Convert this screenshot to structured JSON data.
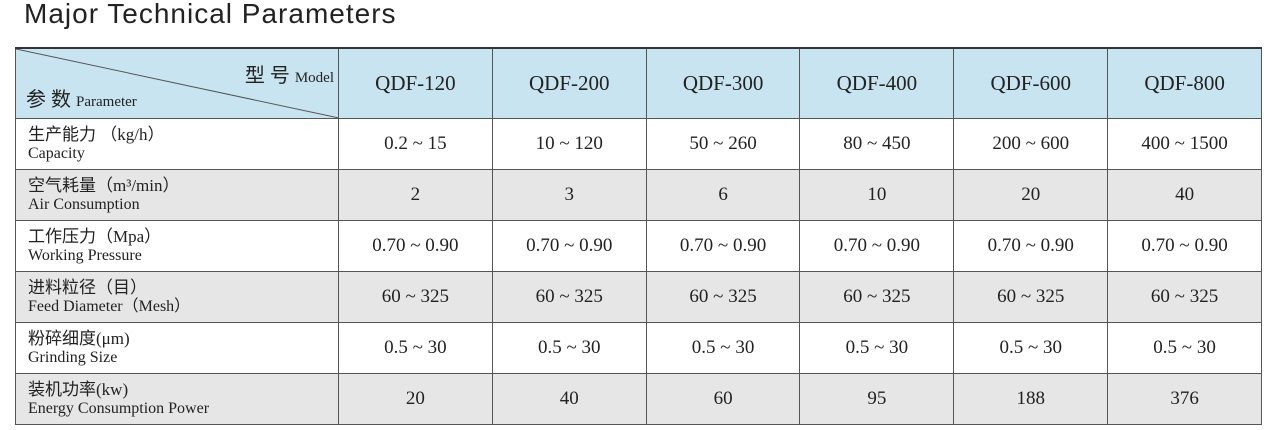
{
  "title": "Major Technical Parameters",
  "table": {
    "header": {
      "model_cn": "型 号",
      "model_en": "Model",
      "param_cn": "参 数",
      "param_en": "Parameter",
      "columns": [
        "QDF-120",
        "QDF-200",
        "QDF-300",
        "QDF-400",
        "QDF-600",
        "QDF-800"
      ]
    },
    "rows": [
      {
        "label_cn": "生产能力 （kg/h）",
        "label_en": "Capacity",
        "values": [
          "0.2 ~ 15",
          "10 ~ 120",
          "50 ~ 260",
          "80 ~ 450",
          "200 ~ 600",
          "400 ~ 1500"
        ]
      },
      {
        "label_cn": "空气耗量（m³/min）",
        "label_en": "Air Consumption",
        "values": [
          "2",
          "3",
          "6",
          "10",
          "20",
          "40"
        ]
      },
      {
        "label_cn": "工作压力（Mpa）",
        "label_en": "Working Pressure",
        "values": [
          "0.70 ~ 0.90",
          "0.70 ~ 0.90",
          "0.70 ~ 0.90",
          "0.70 ~ 0.90",
          "0.70 ~ 0.90",
          "0.70 ~ 0.90"
        ]
      },
      {
        "label_cn": "进料粒径（目）",
        "label_en": "Feed Diameter（Mesh）",
        "values": [
          "60 ~ 325",
          "60 ~ 325",
          "60 ~ 325",
          "60 ~ 325",
          "60 ~ 325",
          "60 ~ 325"
        ]
      },
      {
        "label_cn": "粉碎细度(μm)",
        "label_en": "Grinding Size",
        "values": [
          "0.5 ~ 30",
          "0.5 ~ 30",
          "0.5 ~ 30",
          "0.5 ~ 30",
          "0.5 ~ 30",
          "0.5 ~ 30"
        ]
      },
      {
        "label_cn": "装机功率(kw)",
        "label_en": "Energy Consumption Power",
        "values": [
          "20",
          "40",
          "60",
          "95",
          "188",
          "376"
        ]
      }
    ]
  }
}
